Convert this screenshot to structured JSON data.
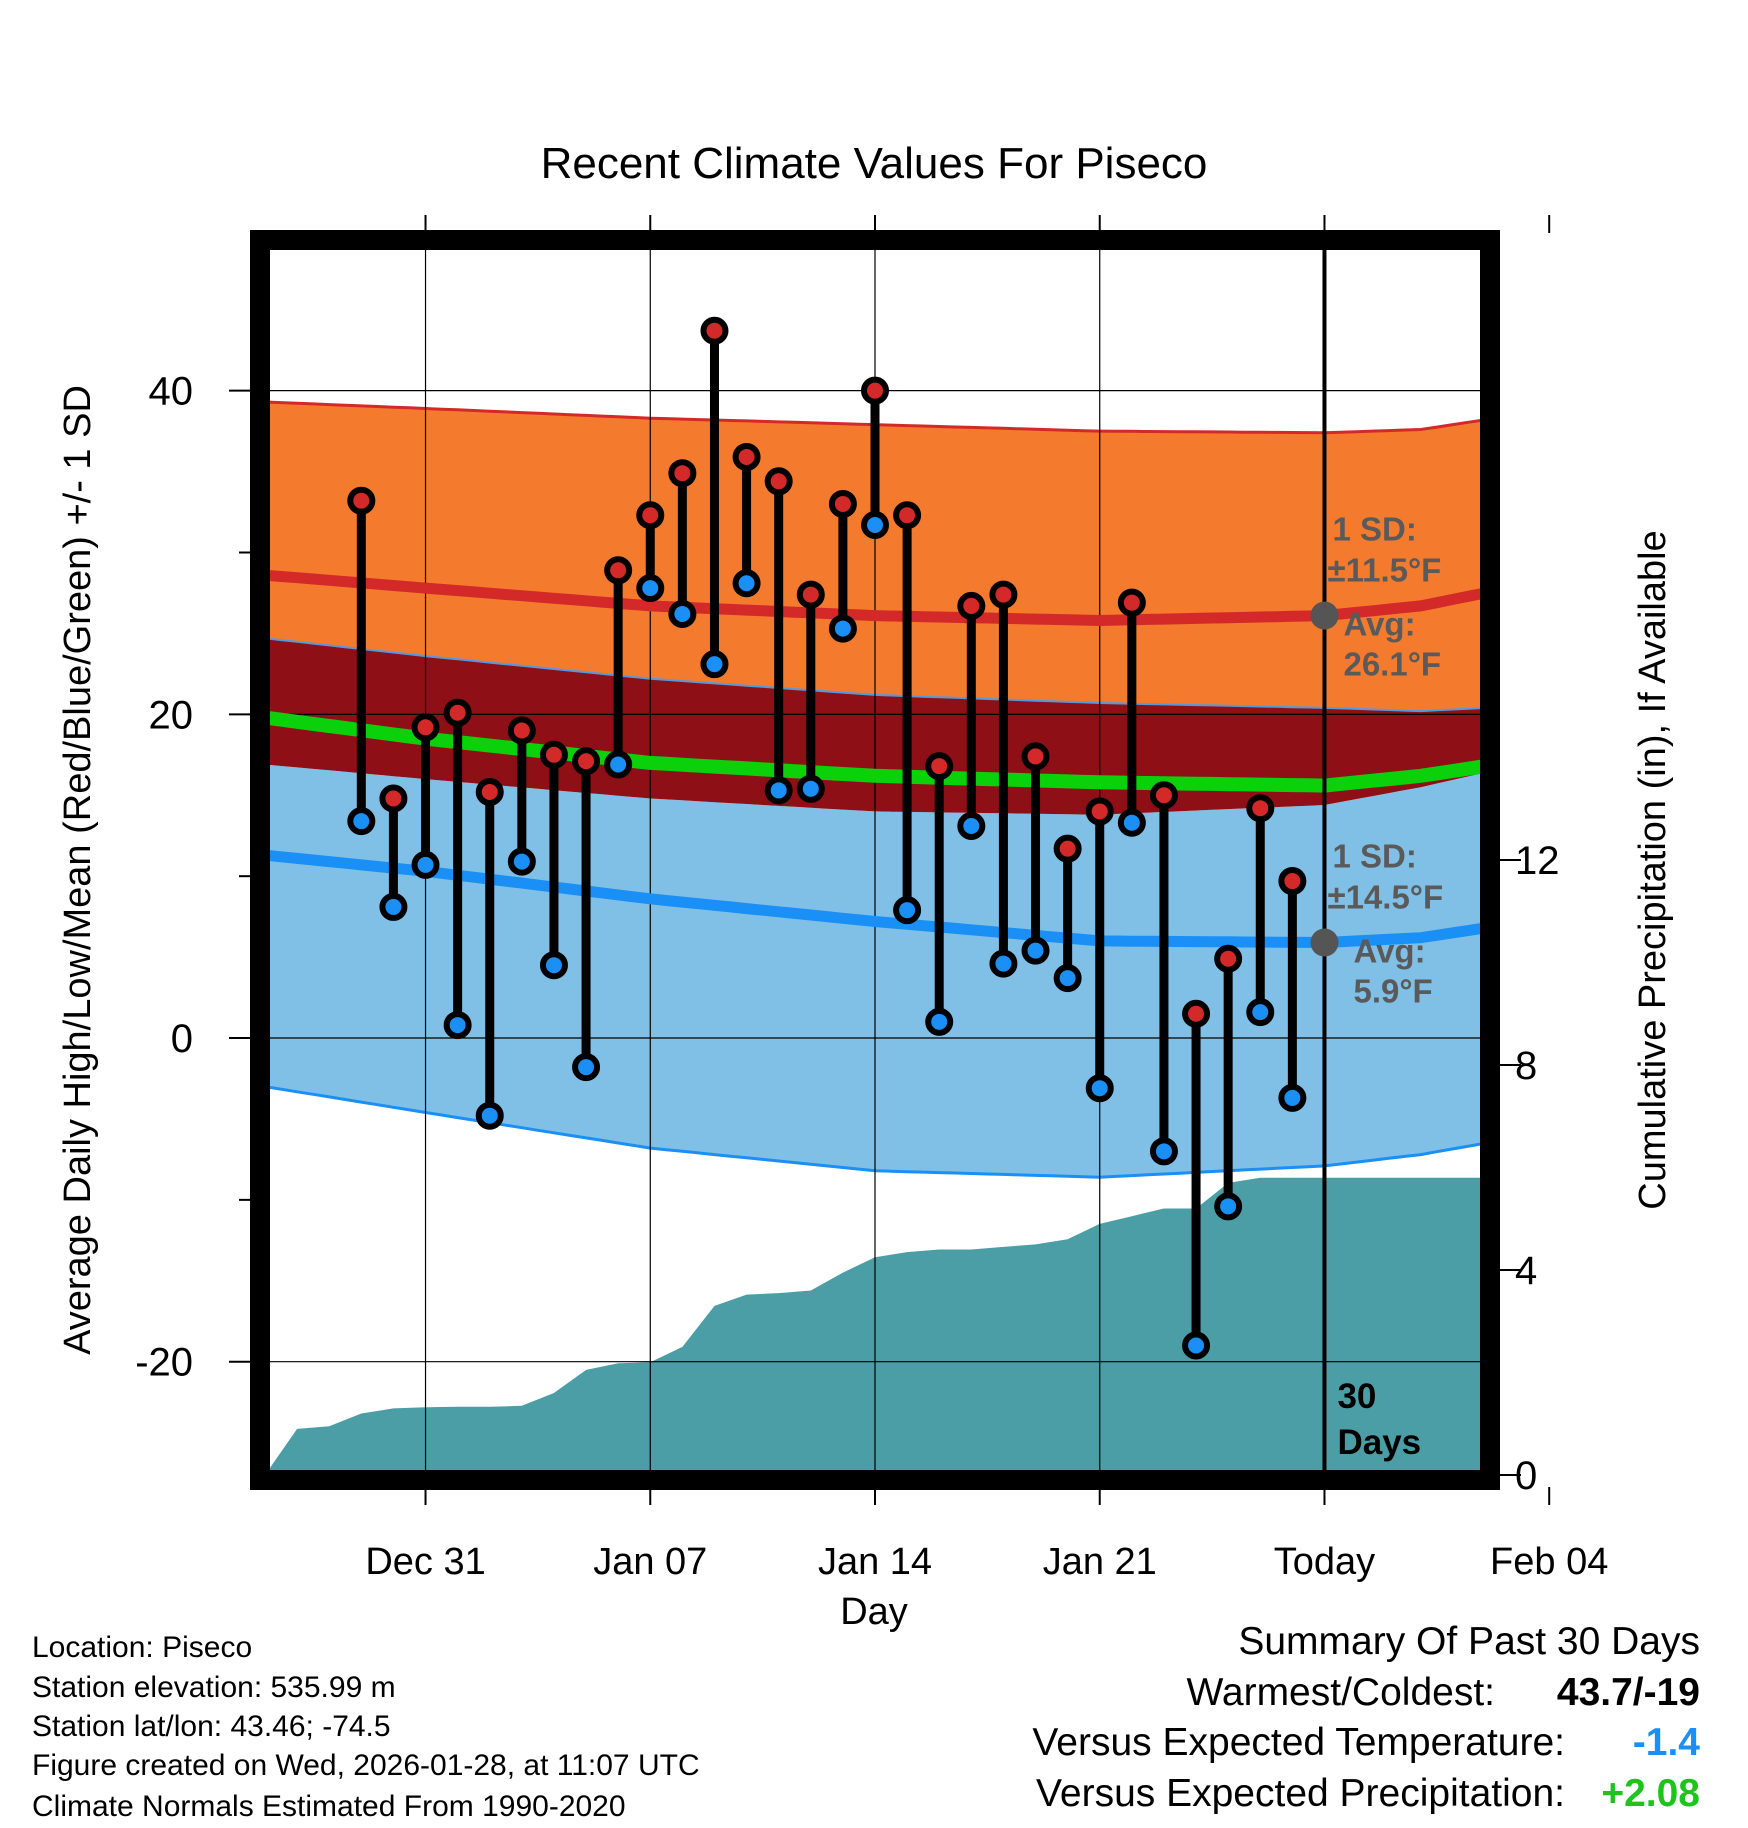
{
  "chart_data": {
    "type": "line",
    "title": "Recent Climate Values For Piseco",
    "xlabel": "Day",
    "ylabel": "Average Daily High/Low/Mean (Red/Blue/Green) +/- 1 SD",
    "y2label": "Cumulative Precipitation (in), If Available",
    "x_day_range": [
      -33,
      5
    ],
    "ylim": [
      -27,
      49
    ],
    "y2lim": [
      0,
      24
    ],
    "x_ticks": [
      {
        "day": -28,
        "label": "Dec 31"
      },
      {
        "day": -21,
        "label": "Jan 07"
      },
      {
        "day": -14,
        "label": "Jan 14"
      },
      {
        "day": -7,
        "label": "Jan 21"
      },
      {
        "day": 0,
        "label": "Today"
      },
      {
        "day": 7,
        "label": "Feb 04"
      }
    ],
    "y_ticks": [
      {
        "value": 40,
        "label": "40"
      },
      {
        "value": 20,
        "label": "20"
      },
      {
        "value": 0,
        "label": "0"
      },
      {
        "value": -20,
        "label": "-20"
      }
    ],
    "y_minor_ticks": [
      30,
      10,
      -10
    ],
    "y2_ticks": [
      {
        "value": 12,
        "label": "12"
      },
      {
        "value": 8,
        "label": "8"
      },
      {
        "value": 4,
        "label": "4"
      },
      {
        "value": 0,
        "label": "0"
      }
    ],
    "normals_days": [
      -33,
      -28,
      -21,
      -14,
      -7,
      0,
      3,
      5
    ],
    "normal_high": [
      28.6,
      27.8,
      26.7,
      26.1,
      25.8,
      26.1,
      26.7,
      27.5
    ],
    "normal_high_upper": [
      39.3,
      38.9,
      38.3,
      37.9,
      37.5,
      37.4,
      37.6,
      38.2
    ],
    "normal_high_lower": [
      24.7,
      23.6,
      22.2,
      21.2,
      20.7,
      20.4,
      20.2,
      20.4
    ],
    "normal_mean": [
      19.8,
      18.5,
      17.0,
      16.2,
      15.8,
      15.6,
      16.2,
      16.8
    ],
    "normal_low": [
      11.3,
      10.3,
      8.6,
      7.2,
      6.0,
      5.9,
      6.2,
      6.8
    ],
    "normal_low_upper": [
      16.9,
      16.0,
      14.8,
      14.0,
      13.8,
      14.4,
      15.5,
      16.4
    ],
    "normal_low_lower": [
      -3.0,
      -4.6,
      -6.8,
      -8.2,
      -8.6,
      -7.9,
      -7.2,
      -6.5
    ],
    "highs": [
      {
        "day": -30,
        "value": 33.2
      },
      {
        "day": -29,
        "value": 14.8
      },
      {
        "day": -28,
        "value": 19.2
      },
      {
        "day": -27,
        "value": 20.1
      },
      {
        "day": -26,
        "value": 15.2
      },
      {
        "day": -25,
        "value": 19.0
      },
      {
        "day": -24,
        "value": 17.5
      },
      {
        "day": -23,
        "value": 17.1
      },
      {
        "day": -22,
        "value": 28.9
      },
      {
        "day": -21,
        "value": 32.3
      },
      {
        "day": -20,
        "value": 34.9
      },
      {
        "day": -19,
        "value": 43.7
      },
      {
        "day": -18,
        "value": 35.9
      },
      {
        "day": -17,
        "value": 34.4
      },
      {
        "day": -16,
        "value": 27.4
      },
      {
        "day": -15,
        "value": 33.0
      },
      {
        "day": -14,
        "value": 40.0
      },
      {
        "day": -13,
        "value": 32.3
      },
      {
        "day": -12,
        "value": 16.8
      },
      {
        "day": -11,
        "value": 26.7
      },
      {
        "day": -10,
        "value": 27.4
      },
      {
        "day": -9,
        "value": 17.4
      },
      {
        "day": -8,
        "value": 11.7
      },
      {
        "day": -7,
        "value": 14.0
      },
      {
        "day": -6,
        "value": 26.9
      },
      {
        "day": -5,
        "value": 15.0
      },
      {
        "day": -4,
        "value": 1.5
      },
      {
        "day": -3,
        "value": 4.9
      },
      {
        "day": -2,
        "value": 14.2
      },
      {
        "day": -1,
        "value": 9.7
      }
    ],
    "lows": [
      {
        "day": -30,
        "value": 13.4
      },
      {
        "day": -29,
        "value": 8.1
      },
      {
        "day": -28,
        "value": 10.7
      },
      {
        "day": -27,
        "value": 0.8
      },
      {
        "day": -26,
        "value": -4.8
      },
      {
        "day": -25,
        "value": 10.9
      },
      {
        "day": -24,
        "value": 4.5
      },
      {
        "day": -23,
        "value": -1.8
      },
      {
        "day": -22,
        "value": 16.9
      },
      {
        "day": -21,
        "value": 27.8
      },
      {
        "day": -20,
        "value": 26.2
      },
      {
        "day": -19,
        "value": 23.1
      },
      {
        "day": -18,
        "value": 28.1
      },
      {
        "day": -17,
        "value": 15.3
      },
      {
        "day": -16,
        "value": 15.4
      },
      {
        "day": -15,
        "value": 25.3
      },
      {
        "day": -14,
        "value": 31.7
      },
      {
        "day": -13,
        "value": 7.9
      },
      {
        "day": -12,
        "value": 1.0
      },
      {
        "day": -11,
        "value": 13.1
      },
      {
        "day": -10,
        "value": 4.6
      },
      {
        "day": -9,
        "value": 5.4
      },
      {
        "day": -8,
        "value": 3.7
      },
      {
        "day": -7,
        "value": -3.1
      },
      {
        "day": -6,
        "value": 13.3
      },
      {
        "day": -5,
        "value": -7.0
      },
      {
        "day": -4,
        "value": -19.0
      },
      {
        "day": -3,
        "value": -10.4
      },
      {
        "day": -2,
        "value": 1.6
      },
      {
        "day": -1,
        "value": -3.7
      }
    ],
    "cumulative_precip": [
      {
        "day": -33,
        "value": 0.0
      },
      {
        "day": -32,
        "value": 0.9
      },
      {
        "day": -31,
        "value": 0.95
      },
      {
        "day": -30,
        "value": 1.2
      },
      {
        "day": -29,
        "value": 1.3
      },
      {
        "day": -28,
        "value": 1.32
      },
      {
        "day": -27,
        "value": 1.33
      },
      {
        "day": -26,
        "value": 1.33
      },
      {
        "day": -25,
        "value": 1.35
      },
      {
        "day": -24,
        "value": 1.6
      },
      {
        "day": -23,
        "value": 2.05
      },
      {
        "day": -22,
        "value": 2.18
      },
      {
        "day": -21,
        "value": 2.2
      },
      {
        "day": -20,
        "value": 2.5
      },
      {
        "day": -19,
        "value": 3.3
      },
      {
        "day": -18,
        "value": 3.52
      },
      {
        "day": -17,
        "value": 3.55
      },
      {
        "day": -16,
        "value": 3.6
      },
      {
        "day": -15,
        "value": 3.95
      },
      {
        "day": -14,
        "value": 4.25
      },
      {
        "day": -13,
        "value": 4.35
      },
      {
        "day": -12,
        "value": 4.4
      },
      {
        "day": -11,
        "value": 4.4
      },
      {
        "day": -10,
        "value": 4.45
      },
      {
        "day": -9,
        "value": 4.5
      },
      {
        "day": -8,
        "value": 4.6
      },
      {
        "day": -7,
        "value": 4.9
      },
      {
        "day": -6,
        "value": 5.05
      },
      {
        "day": -5,
        "value": 5.2
      },
      {
        "day": -4,
        "value": 5.2
      },
      {
        "day": -3,
        "value": 5.7
      },
      {
        "day": -2,
        "value": 5.8
      },
      {
        "day": -1,
        "value": 5.8
      },
      {
        "day": 0,
        "value": 5.8
      },
      {
        "day": 5,
        "value": 5.8
      }
    ],
    "annotations": {
      "high_sd_label": "1 SD:",
      "high_sd_value": "±11.5°F",
      "high_avg_label": "Avg:",
      "high_avg_value": "26.1°F",
      "high_avg": 26.1,
      "low_sd_label": "1 SD:",
      "low_sd_value": "±14.5°F",
      "low_avg_label": "Avg:",
      "low_avg_value": "5.9°F",
      "low_avg": 5.9,
      "period_number": "30",
      "period_unit": "Days"
    },
    "colors": {
      "high_band": "#f47b2e",
      "high_line": "#d42929",
      "overlap_band": "#8f0f17",
      "mean_line": "#0ad10a",
      "low_band": "#80c0e6",
      "low_line": "#1a8ff5",
      "precip": "#4b9ea6",
      "high_marker": "#d42929",
      "low_marker": "#1a8ff5",
      "annotation_text": "#5a5a5a"
    }
  },
  "info": {
    "location": "Location: Piseco",
    "elevation": "Station elevation: 535.99 m",
    "latlon": "Station lat/lon: 43.46; -74.5",
    "created": "Figure created on Wed, 2026-01-28, at 11:07 UTC",
    "normals": "Climate Normals Estimated From 1990-2020"
  },
  "summary": {
    "title": "Summary Of Past 30 Days",
    "warmest_label": "Warmest/Coldest:",
    "warmest_value": "43.7/-19",
    "temp_label": "Versus Expected Temperature:",
    "temp_value": "-1.4",
    "temp_color": "#1a8ff5",
    "precip_label": "Versus Expected Precipitation:",
    "precip_value": "+2.08",
    "precip_color": "#1ec41e"
  }
}
